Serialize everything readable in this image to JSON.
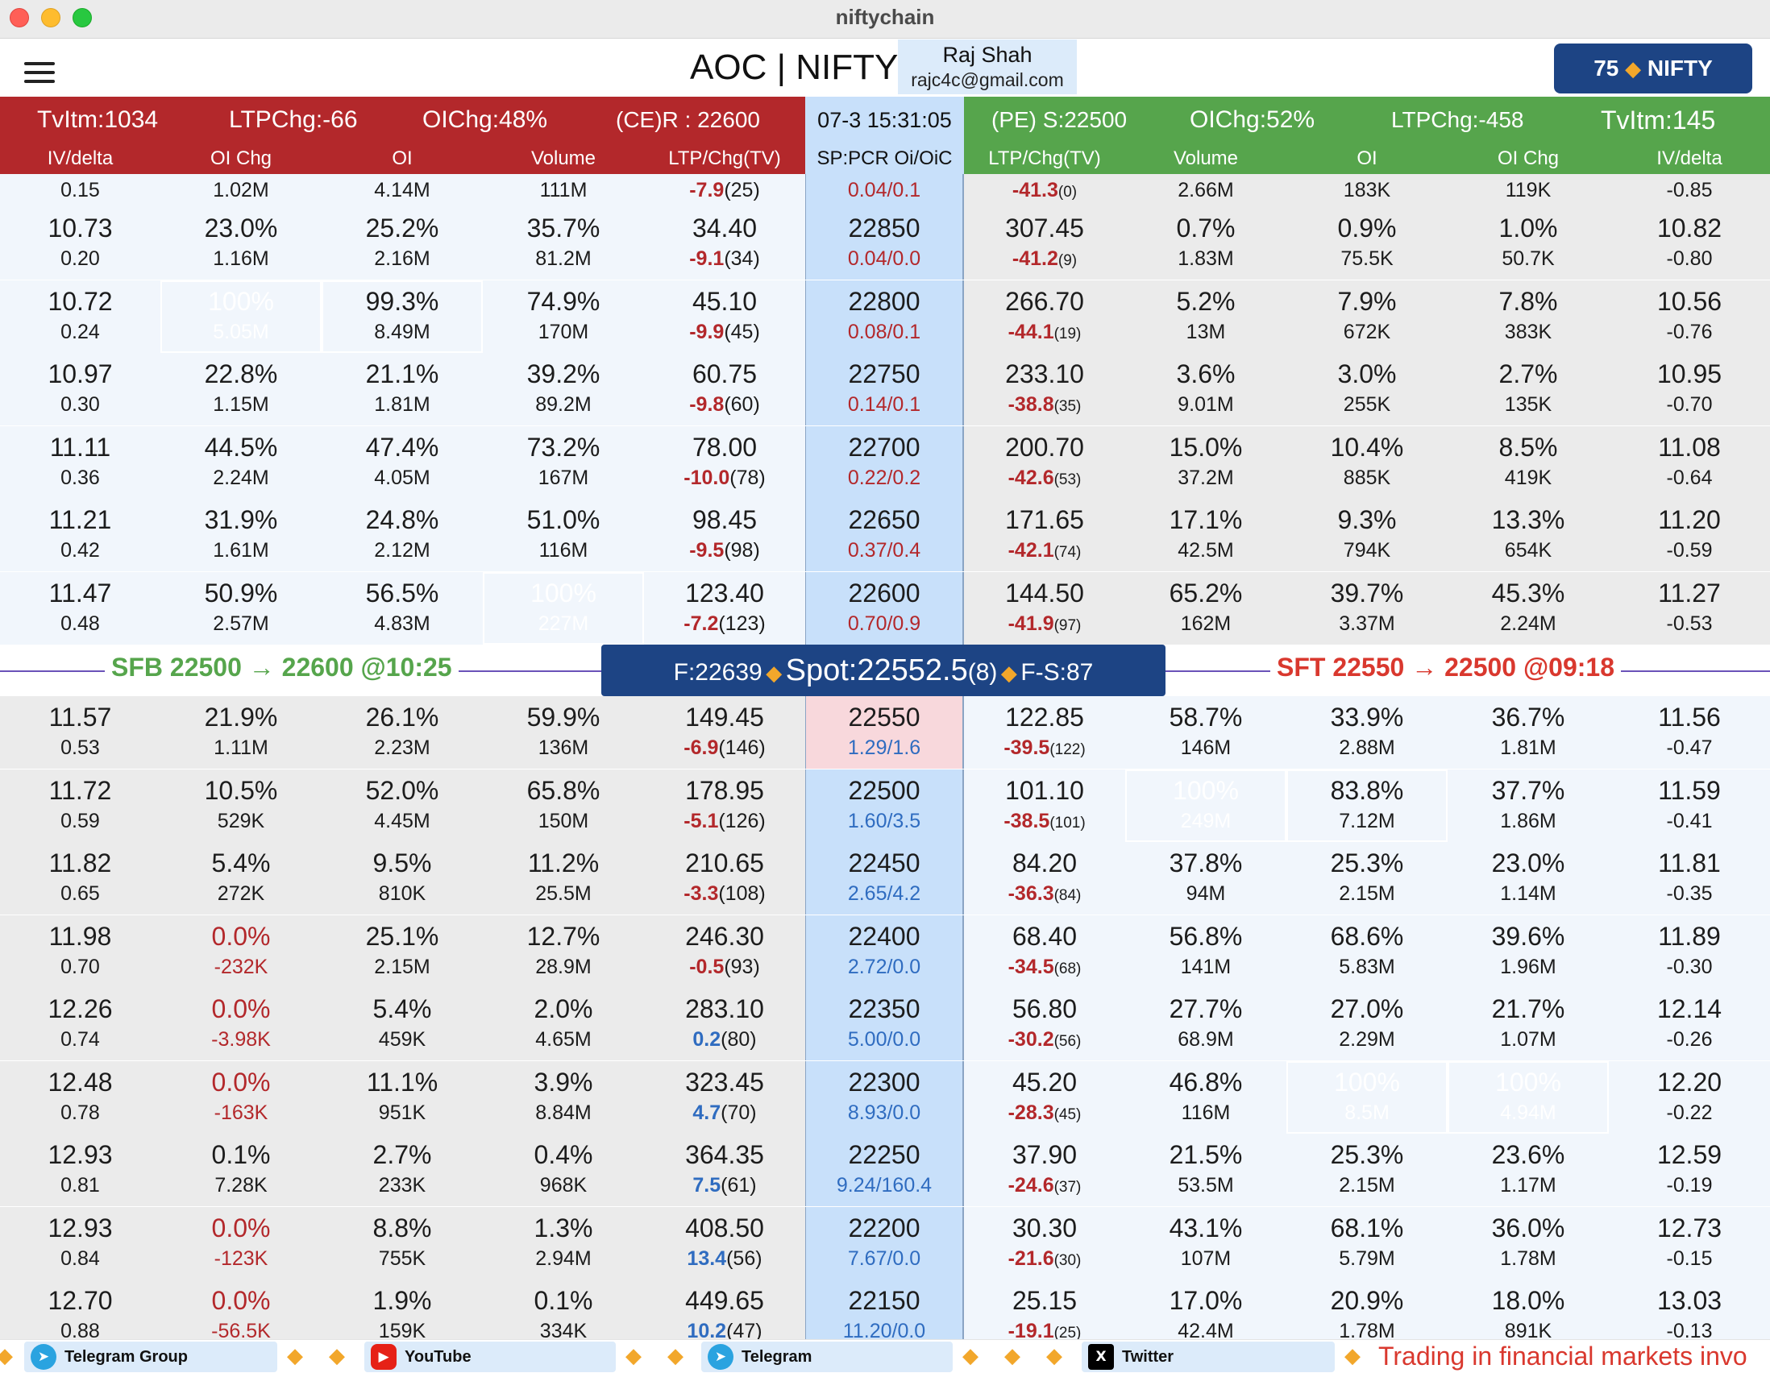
{
  "window": {
    "title": "niftychain"
  },
  "header": {
    "title": "AOC | NIFTY",
    "user_name": "Raj Shah",
    "user_email": "rajc4c@gmail.com",
    "lot_size": "75",
    "lot_symbol": "NIFTY"
  },
  "summary": {
    "ce_tvitm": "TvItm:1034",
    "ce_ltpchg": "LTPChg:-66",
    "ce_oichg": "OIChg:48%",
    "ce_resistance": "(CE)R : 22600",
    "time": "07-3 15:31:05",
    "pe_support": "(PE) S:22500",
    "pe_oichg": "OIChg:52%",
    "pe_ltpchg": "LTPChg:-458",
    "pe_tvitm": "TvItm:145"
  },
  "columns": {
    "ce": [
      "IV/delta",
      "OI Chg",
      "OI",
      "Volume",
      "LTP/Chg(TV)"
    ],
    "mid": "SP:PCR Oi/OiC",
    "pe": [
      "LTP/Chg(TV)",
      "Volume",
      "OI",
      "OI Chg",
      "IV/delta"
    ]
  },
  "spot": {
    "sfb": "SFB 22500 → 22600 @10:25",
    "future": "F:22639",
    "spot_label": "Spot:22552.5",
    "spot_chg": "(8)",
    "fs": "F-S:87",
    "sft": "SFT 22550 → 22500 @09:18"
  },
  "rows": [
    {
      "iv": "",
      "delta": "0.15",
      "oichg_pct": "",
      "oichg": "1.02M",
      "oi_pct": "",
      "oi": "4.14M",
      "vol_pct": "",
      "vol": "111M",
      "ltp": "",
      "chg": "-7.9",
      "tv": "(25)",
      "strike": "",
      "pcr": "0.04/0.1",
      "pe_ltp": "",
      "pe_chg": "-41.3",
      "pe_tv": "(0)",
      "pe_vol_pct": "",
      "pe_vol": "2.66M",
      "pe_oi_pct": "",
      "pe_oi": "183K",
      "pe_oichg_pct": "",
      "pe_oichg": "119K",
      "pe_iv": "",
      "pe_delta": "-0.85"
    },
    {
      "iv": "10.73",
      "delta": "0.20",
      "oichg_pct": "23.0%",
      "oichg": "1.16M",
      "oi_pct": "25.2%",
      "oi": "2.16M",
      "vol_pct": "35.7%",
      "vol": "81.2M",
      "ltp": "34.40",
      "chg": "-9.1",
      "tv": "(34)",
      "strike": "22850",
      "pcr": "0.04/0.0",
      "pe_ltp": "307.45",
      "pe_chg": "-41.2",
      "pe_tv": "(9)",
      "pe_vol_pct": "0.7%",
      "pe_vol": "1.83M",
      "pe_oi_pct": "0.9%",
      "pe_oi": "75.5K",
      "pe_oichg_pct": "1.0%",
      "pe_oichg": "50.7K",
      "pe_iv": "10.82",
      "pe_delta": "-0.80"
    },
    {
      "iv": "10.72",
      "delta": "0.24",
      "oichg_pct": "100%",
      "oichg": "5.05M",
      "oi_pct": "99.3%",
      "oi": "8.49M",
      "vol_pct": "74.9%",
      "vol": "170M",
      "ltp": "45.10",
      "chg": "-9.9",
      "tv": "(45)",
      "strike": "22800",
      "pcr": "0.08/0.1",
      "pe_ltp": "266.70",
      "pe_chg": "-44.1",
      "pe_tv": "(19)",
      "pe_vol_pct": "5.2%",
      "pe_vol": "13M",
      "pe_oi_pct": "7.9%",
      "pe_oi": "672K",
      "pe_oichg_pct": "7.8%",
      "pe_oichg": "383K",
      "pe_iv": "10.56",
      "pe_delta": "-0.76"
    },
    {
      "iv": "10.97",
      "delta": "0.30",
      "oichg_pct": "22.8%",
      "oichg": "1.15M",
      "oi_pct": "21.1%",
      "oi": "1.81M",
      "vol_pct": "39.2%",
      "vol": "89.2M",
      "ltp": "60.75",
      "chg": "-9.8",
      "tv": "(60)",
      "strike": "22750",
      "pcr": "0.14/0.1",
      "pe_ltp": "233.10",
      "pe_chg": "-38.8",
      "pe_tv": "(35)",
      "pe_vol_pct": "3.6%",
      "pe_vol": "9.01M",
      "pe_oi_pct": "3.0%",
      "pe_oi": "255K",
      "pe_oichg_pct": "2.7%",
      "pe_oichg": "135K",
      "pe_iv": "10.95",
      "pe_delta": "-0.70"
    },
    {
      "iv": "11.11",
      "delta": "0.36",
      "oichg_pct": "44.5%",
      "oichg": "2.24M",
      "oi_pct": "47.4%",
      "oi": "4.05M",
      "vol_pct": "73.2%",
      "vol": "167M",
      "ltp": "78.00",
      "chg": "-10.0",
      "tv": "(78)",
      "strike": "22700",
      "pcr": "0.22/0.2",
      "pe_ltp": "200.70",
      "pe_chg": "-42.6",
      "pe_tv": "(53)",
      "pe_vol_pct": "15.0%",
      "pe_vol": "37.2M",
      "pe_oi_pct": "10.4%",
      "pe_oi": "885K",
      "pe_oichg_pct": "8.5%",
      "pe_oichg": "419K",
      "pe_iv": "11.08",
      "pe_delta": "-0.64"
    },
    {
      "iv": "11.21",
      "delta": "0.42",
      "oichg_pct": "31.9%",
      "oichg": "1.61M",
      "oi_pct": "24.8%",
      "oi": "2.12M",
      "vol_pct": "51.0%",
      "vol": "116M",
      "ltp": "98.45",
      "chg": "-9.5",
      "tv": "(98)",
      "strike": "22650",
      "pcr": "0.37/0.4",
      "pe_ltp": "171.65",
      "pe_chg": "-42.1",
      "pe_tv": "(74)",
      "pe_vol_pct": "17.1%",
      "pe_vol": "42.5M",
      "pe_oi_pct": "9.3%",
      "pe_oi": "794K",
      "pe_oichg_pct": "13.3%",
      "pe_oichg": "654K",
      "pe_iv": "11.20",
      "pe_delta": "-0.59"
    },
    {
      "iv": "11.47",
      "delta": "0.48",
      "oichg_pct": "50.9%",
      "oichg": "2.57M",
      "oi_pct": "56.5%",
      "oi": "4.83M",
      "vol_pct": "100%",
      "vol": "227M",
      "ltp": "123.40",
      "chg": "-7.2",
      "tv": "(123)",
      "strike": "22600",
      "pcr": "0.70/0.9",
      "pe_ltp": "144.50",
      "pe_chg": "-41.9",
      "pe_tv": "(97)",
      "pe_vol_pct": "65.2%",
      "pe_vol": "162M",
      "pe_oi_pct": "39.7%",
      "pe_oi": "3.37M",
      "pe_oichg_pct": "45.3%",
      "pe_oichg": "2.24M",
      "pe_iv": "11.27",
      "pe_delta": "-0.53"
    },
    {
      "iv": "11.57",
      "delta": "0.53",
      "oichg_pct": "21.9%",
      "oichg": "1.11M",
      "oi_pct": "26.1%",
      "oi": "2.23M",
      "vol_pct": "59.9%",
      "vol": "136M",
      "ltp": "149.45",
      "chg": "-6.9",
      "tv": "(146)",
      "strike": "22550",
      "pcr": "1.29/1.6",
      "pe_ltp": "122.85",
      "pe_chg": "-39.5",
      "pe_tv": "(122)",
      "pe_vol_pct": "58.7%",
      "pe_vol": "146M",
      "pe_oi_pct": "33.9%",
      "pe_oi": "2.88M",
      "pe_oichg_pct": "36.7%",
      "pe_oichg": "1.81M",
      "pe_iv": "11.56",
      "pe_delta": "-0.47"
    },
    {
      "iv": "11.72",
      "delta": "0.59",
      "oichg_pct": "10.5%",
      "oichg": "529K",
      "oi_pct": "52.0%",
      "oi": "4.45M",
      "vol_pct": "65.8%",
      "vol": "150M",
      "ltp": "178.95",
      "chg": "-5.1",
      "tv": "(126)",
      "strike": "22500",
      "pcr": "1.60/3.5",
      "pe_ltp": "101.10",
      "pe_chg": "-38.5",
      "pe_tv": "(101)",
      "pe_vol_pct": "100%",
      "pe_vol": "249M",
      "pe_oi_pct": "83.8%",
      "pe_oi": "7.12M",
      "pe_oichg_pct": "37.7%",
      "pe_oichg": "1.86M",
      "pe_iv": "11.59",
      "pe_delta": "-0.41"
    },
    {
      "iv": "11.82",
      "delta": "0.65",
      "oichg_pct": "5.4%",
      "oichg": "272K",
      "oi_pct": "9.5%",
      "oi": "810K",
      "vol_pct": "11.2%",
      "vol": "25.5M",
      "ltp": "210.65",
      "chg": "-3.3",
      "tv": "(108)",
      "strike": "22450",
      "pcr": "2.65/4.2",
      "pe_ltp": "84.20",
      "pe_chg": "-36.3",
      "pe_tv": "(84)",
      "pe_vol_pct": "37.8%",
      "pe_vol": "94M",
      "pe_oi_pct": "25.3%",
      "pe_oi": "2.15M",
      "pe_oichg_pct": "23.0%",
      "pe_oichg": "1.14M",
      "pe_iv": "11.81",
      "pe_delta": "-0.35"
    },
    {
      "iv": "11.98",
      "delta": "0.70",
      "oichg_pct": "0.0%",
      "oichg": "-232K",
      "oi_pct": "25.1%",
      "oi": "2.15M",
      "vol_pct": "12.7%",
      "vol": "28.9M",
      "ltp": "246.30",
      "chg": "-0.5",
      "tv": "(93)",
      "strike": "22400",
      "pcr": "2.72/0.0",
      "pe_ltp": "68.40",
      "pe_chg": "-34.5",
      "pe_tv": "(68)",
      "pe_vol_pct": "56.8%",
      "pe_vol": "141M",
      "pe_oi_pct": "68.6%",
      "pe_oi": "5.83M",
      "pe_oichg_pct": "39.6%",
      "pe_oichg": "1.96M",
      "pe_iv": "11.89",
      "pe_delta": "-0.30"
    },
    {
      "iv": "12.26",
      "delta": "0.74",
      "oichg_pct": "0.0%",
      "oichg": "-3.98K",
      "oi_pct": "5.4%",
      "oi": "459K",
      "vol_pct": "2.0%",
      "vol": "4.65M",
      "ltp": "283.10",
      "chg": "0.2",
      "tv": "(80)",
      "strike": "22350",
      "pcr": "5.00/0.0",
      "pe_ltp": "56.80",
      "pe_chg": "-30.2",
      "pe_tv": "(56)",
      "pe_vol_pct": "27.7%",
      "pe_vol": "68.9M",
      "pe_oi_pct": "27.0%",
      "pe_oi": "2.29M",
      "pe_oichg_pct": "21.7%",
      "pe_oichg": "1.07M",
      "pe_iv": "12.14",
      "pe_delta": "-0.26"
    },
    {
      "iv": "12.48",
      "delta": "0.78",
      "oichg_pct": "0.0%",
      "oichg": "-163K",
      "oi_pct": "11.1%",
      "oi": "951K",
      "vol_pct": "3.9%",
      "vol": "8.84M",
      "ltp": "323.45",
      "chg": "4.7",
      "tv": "(70)",
      "strike": "22300",
      "pcr": "8.93/0.0",
      "pe_ltp": "45.20",
      "pe_chg": "-28.3",
      "pe_tv": "(45)",
      "pe_vol_pct": "46.8%",
      "pe_vol": "116M",
      "pe_oi_pct": "100%",
      "pe_oi": "8.5M",
      "pe_oichg_pct": "100%",
      "pe_oichg": "4.94M",
      "pe_iv": "12.20",
      "pe_delta": "-0.22"
    },
    {
      "iv": "12.93",
      "delta": "0.81",
      "oichg_pct": "0.1%",
      "oichg": "7.28K",
      "oi_pct": "2.7%",
      "oi": "233K",
      "vol_pct": "0.4%",
      "vol": "968K",
      "ltp": "364.35",
      "chg": "7.5",
      "tv": "(61)",
      "strike": "22250",
      "pcr": "9.24/160.4",
      "pe_ltp": "37.90",
      "pe_chg": "-24.6",
      "pe_tv": "(37)",
      "pe_vol_pct": "21.5%",
      "pe_vol": "53.5M",
      "pe_oi_pct": "25.3%",
      "pe_oi": "2.15M",
      "pe_oichg_pct": "23.6%",
      "pe_oichg": "1.17M",
      "pe_iv": "12.59",
      "pe_delta": "-0.19"
    },
    {
      "iv": "12.93",
      "delta": "0.84",
      "oichg_pct": "0.0%",
      "oichg": "-123K",
      "oi_pct": "8.8%",
      "oi": "755K",
      "vol_pct": "1.3%",
      "vol": "2.94M",
      "ltp": "408.50",
      "chg": "13.4",
      "tv": "(56)",
      "strike": "22200",
      "pcr": "7.67/0.0",
      "pe_ltp": "30.30",
      "pe_chg": "-21.6",
      "pe_tv": "(30)",
      "pe_vol_pct": "43.1%",
      "pe_vol": "107M",
      "pe_oi_pct": "68.1%",
      "pe_oi": "5.79M",
      "pe_oichg_pct": "36.0%",
      "pe_oichg": "1.78M",
      "pe_iv": "12.73",
      "pe_delta": "-0.15"
    },
    {
      "iv": "12.70",
      "delta": "0.88",
      "oichg_pct": "0.0%",
      "oichg": "-56.5K",
      "oi_pct": "1.9%",
      "oi": "159K",
      "vol_pct": "0.1%",
      "vol": "334K",
      "ltp": "449.65",
      "chg": "10.2",
      "tv": "(47)",
      "strike": "22150",
      "pcr": "11.20/0.0",
      "pe_ltp": "25.15",
      "pe_chg": "-19.1",
      "pe_tv": "(25)",
      "pe_vol_pct": "17.0%",
      "pe_vol": "42.4M",
      "pe_oi_pct": "20.9%",
      "pe_oi": "1.78M",
      "pe_oichg_pct": "18.0%",
      "pe_oichg": "891K",
      "pe_iv": "13.03",
      "pe_delta": "-0.13"
    }
  ],
  "highlights": {
    "ce_oichg_max": "22800",
    "ce_oi_near_max": "22800",
    "ce_vol_max": "22600",
    "pe_vol_max": "22500",
    "pe_oi_near_max": "22500",
    "pe_oi_max": "22300",
    "pe_oichg_max": "22300"
  },
  "ticker": {
    "telegram_group": "Telegram Group",
    "youtube": "YouTube",
    "telegram": "Telegram",
    "twitter": "Twitter",
    "disclaimer": "Trading in financial markets invo"
  },
  "colors": {
    "ce_red": "#b3282b",
    "pe_green": "#56a54c",
    "strike_blue": "#c8e0fa",
    "navy": "#1d4484",
    "highlight_yellow": "#ddd56a"
  }
}
